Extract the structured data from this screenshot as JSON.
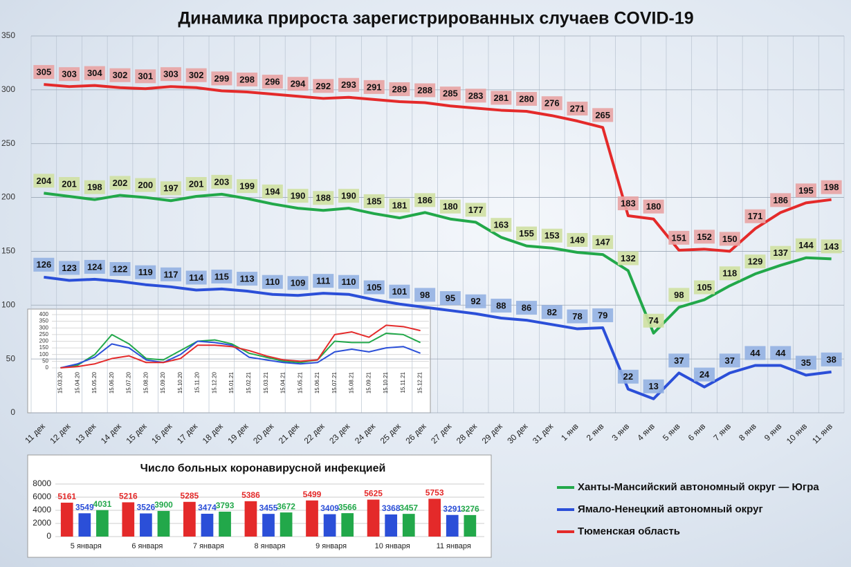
{
  "chart_data": [
    {
      "type": "line",
      "title": "Динамика прироста зарегистрированных случаев COVID-19",
      "categories": [
        "11 дек",
        "12 дек",
        "13 дек",
        "14 дек",
        "15 дек",
        "16 дек",
        "17 дек",
        "18 дек",
        "19 дек",
        "20 дек",
        "21 дек",
        "22 дек",
        "23 дек",
        "24 дек",
        "25 дек",
        "26 дек",
        "27 дек",
        "28 дек",
        "29 дек",
        "30 дек",
        "31 дек",
        "1 янв",
        "2 янв",
        "3 янв",
        "4 янв",
        "5 янв",
        "6 янв",
        "7 янв",
        "8 янв",
        "9 янв",
        "10 янв",
        "11 янв"
      ],
      "series": [
        {
          "name": "Ханты-Мансийский автономный округ — Югра",
          "color": "#22a84a",
          "values": [
            204,
            201,
            198,
            202,
            200,
            197,
            201,
            203,
            199,
            194,
            190,
            188,
            190,
            185,
            181,
            186,
            180,
            177,
            163,
            155,
            153,
            149,
            147,
            132,
            74,
            98,
            105,
            118,
            129,
            137,
            144,
            143
          ]
        },
        {
          "name": "Ямало-Ненецкий автономный округ",
          "color": "#2b4fd8",
          "values": [
            126,
            123,
            124,
            122,
            119,
            117,
            114,
            115,
            113,
            110,
            109,
            111,
            110,
            105,
            101,
            98,
            95,
            92,
            88,
            86,
            82,
            78,
            79,
            22,
            13,
            37,
            24,
            37,
            44,
            44,
            35,
            38
          ]
        },
        {
          "name": "Тюменская область",
          "color": "#e42a2a",
          "values": [
            305,
            303,
            304,
            302,
            301,
            303,
            302,
            299,
            298,
            296,
            294,
            292,
            293,
            291,
            289,
            288,
            285,
            283,
            281,
            280,
            276,
            271,
            265,
            183,
            180,
            151,
            152,
            150,
            171,
            186,
            195,
            198
          ]
        }
      ],
      "ylim": [
        0,
        350
      ],
      "yticks": [
        0,
        50,
        100,
        150,
        200,
        250,
        300,
        350
      ],
      "grid": true,
      "legend": "bottom-right"
    },
    {
      "type": "line",
      "categories": [
        "15.03.20",
        "15.04.20",
        "15.05.20",
        "15.06.20",
        "15.07.20",
        "15.08.20",
        "15.09.20",
        "15.10.20",
        "15.11.20",
        "15.12.20",
        "15.01.21",
        "15.02.21",
        "15.03.21",
        "15.04.21",
        "15.05.21",
        "15.06.21",
        "15.07.21",
        "15.08.21",
        "15.09.21",
        "15.10.21",
        "15.11.21",
        "15.12.21"
      ],
      "series": [
        {
          "color": "#22a84a",
          "values": [
            0,
            20,
            100,
            250,
            180,
            70,
            60,
            130,
            200,
            210,
            180,
            110,
            80,
            50,
            40,
            60,
            200,
            190,
            190,
            260,
            250,
            190
          ]
        },
        {
          "color": "#2b4fd8",
          "values": [
            0,
            30,
            80,
            180,
            150,
            60,
            40,
            100,
            200,
            190,
            170,
            80,
            60,
            40,
            30,
            40,
            120,
            140,
            120,
            150,
            160,
            110
          ]
        },
        {
          "color": "#e42a2a",
          "values": [
            0,
            10,
            30,
            70,
            90,
            40,
            40,
            70,
            170,
            170,
            160,
            130,
            90,
            60,
            50,
            60,
            250,
            270,
            230,
            320,
            310,
            280
          ]
        }
      ],
      "ylim": [
        0,
        400
      ],
      "yticks": [
        0,
        50,
        100,
        150,
        200,
        250,
        300,
        350,
        400
      ],
      "grid": true
    },
    {
      "type": "bar",
      "title": "Число больных коронавирусной  инфекцией",
      "categories": [
        "5 января",
        "6 января",
        "7 января",
        "8 января",
        "9 января",
        "10 января",
        "11 января"
      ],
      "series": [
        {
          "color": "#e42a2a",
          "values": [
            5161,
            5216,
            5285,
            5386,
            5499,
            5625,
            5753
          ]
        },
        {
          "color": "#2b4fd8",
          "values": [
            3549,
            3526,
            3474,
            3455,
            3409,
            3368,
            3291
          ]
        },
        {
          "color": "#22a84a",
          "values": [
            4031,
            3900,
            3793,
            3672,
            3566,
            3457,
            3276
          ]
        }
      ],
      "ylim": [
        0,
        8000
      ],
      "yticks": [
        0,
        2000,
        4000,
        6000,
        8000
      ],
      "grid": true
    }
  ]
}
